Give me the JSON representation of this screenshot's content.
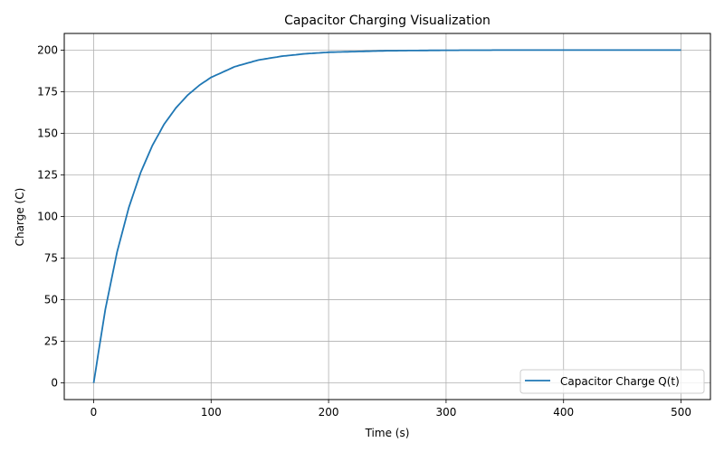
{
  "chart_data": {
    "type": "line",
    "title": "Capacitor Charging Visualization",
    "xlabel": "Time (s)",
    "ylabel": "Charge (C)",
    "xlim": [
      -25,
      525
    ],
    "ylim": [
      -10,
      210
    ],
    "xticks": [
      0,
      100,
      200,
      300,
      400,
      500
    ],
    "yticks": [
      0,
      25,
      50,
      75,
      100,
      125,
      150,
      175,
      200
    ],
    "grid": true,
    "legend_position": "lower right",
    "series": [
      {
        "name": "Capacitor Charge Q(t)",
        "color": "#1f77b4",
        "x": [
          0,
          10,
          20,
          30,
          40,
          50,
          60,
          70,
          80,
          90,
          100,
          120,
          140,
          160,
          180,
          200,
          250,
          300,
          350,
          400,
          450,
          500
        ],
        "values": [
          0,
          44.2,
          78.7,
          105.5,
          126.4,
          142.7,
          155.4,
          165.2,
          172.9,
          178.9,
          183.6,
          190.0,
          194.0,
          196.3,
          197.8,
          198.7,
          199.6,
          199.9,
          200.0,
          200.0,
          200.0,
          200.0
        ]
      }
    ]
  }
}
